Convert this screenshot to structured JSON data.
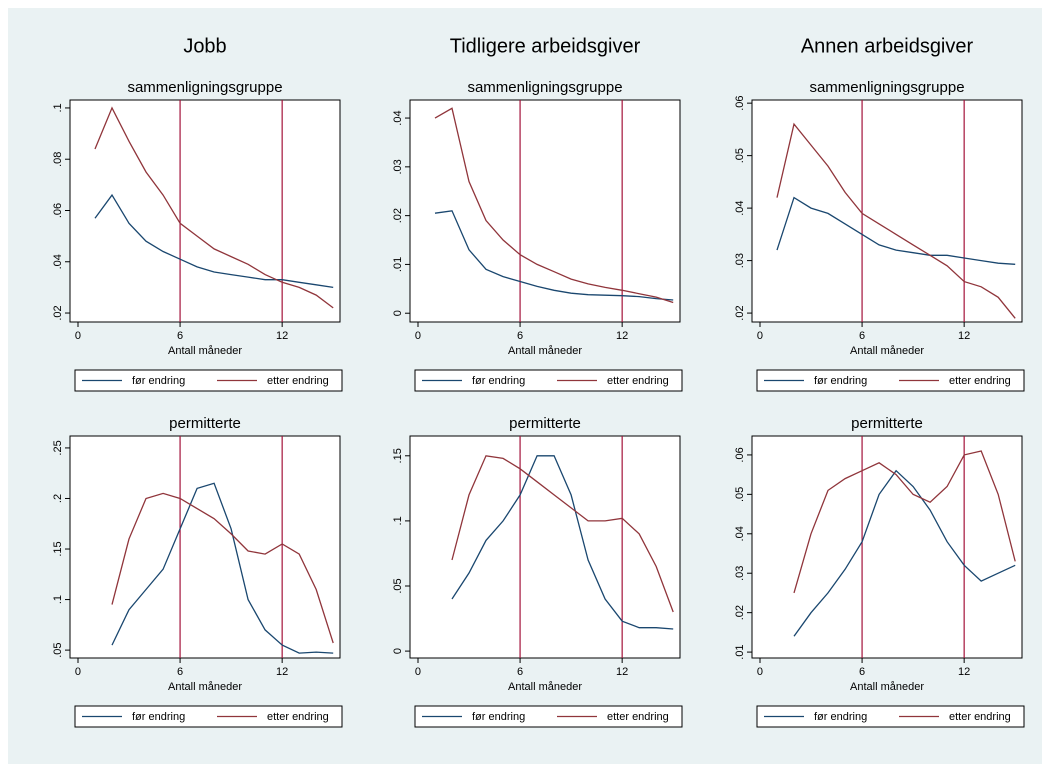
{
  "chart_data": [
    {
      "type": "line",
      "title": "Jobb",
      "subtitle": "sammenligningsgruppe",
      "x_label": "Antall måneder",
      "x": [
        1,
        2,
        3,
        4,
        5,
        6,
        7,
        8,
        9,
        10,
        11,
        12,
        13,
        14,
        15
      ],
      "series": [
        {
          "name": "før endring",
          "color": "#1a476f",
          "values": [
            0.057,
            0.066,
            0.055,
            0.048,
            0.044,
            0.041,
            0.038,
            0.036,
            0.035,
            0.034,
            0.033,
            0.033,
            0.032,
            0.031,
            0.03
          ]
        },
        {
          "name": "etter endring",
          "color": "#90353b",
          "values": [
            0.084,
            0.1,
            0.087,
            0.075,
            0.066,
            0.055,
            0.05,
            0.045,
            0.042,
            0.039,
            0.035,
            0.032,
            0.03,
            0.027,
            0.022
          ]
        }
      ],
      "xlim": [
        -0.47,
        15.4
      ],
      "xticks": [
        0,
        6,
        12
      ],
      "ylim": [
        0.0165,
        0.1031
      ],
      "yticks": [
        {
          "value": 0.02,
          "label": ".02"
        },
        {
          "value": 0.04,
          "label": ".04"
        },
        {
          "value": 0.06,
          "label": ".06"
        },
        {
          "value": 0.08,
          "label": ".08"
        },
        {
          "value": 0.1,
          "label": ".1"
        }
      ],
      "vlines": [
        6,
        12
      ],
      "vline_color": "#a3123a"
    },
    {
      "type": "line",
      "title": "Tidligere arbeidsgiver",
      "subtitle": "sammenligningsgruppe",
      "x_label": "Antall måneder",
      "x": [
        1,
        2,
        3,
        4,
        5,
        6,
        7,
        8,
        9,
        10,
        11,
        12,
        13,
        14,
        15
      ],
      "series": [
        {
          "name": "før endring",
          "color": "#1a476f",
          "values": [
            0.0205,
            0.021,
            0.013,
            0.009,
            0.0075,
            0.0065,
            0.0055,
            0.0047,
            0.0041,
            0.0038,
            0.0037,
            0.0036,
            0.0034,
            0.003,
            0.0027
          ]
        },
        {
          "name": "etter endring",
          "color": "#90353b",
          "values": [
            0.04,
            0.042,
            0.027,
            0.019,
            0.015,
            0.012,
            0.01,
            0.0085,
            0.007,
            0.006,
            0.0053,
            0.0047,
            0.004,
            0.0033,
            0.0022
          ]
        }
      ],
      "xlim": [
        -0.47,
        15.4
      ],
      "xticks": [
        0,
        6,
        12
      ],
      "ylim": [
        -0.0018,
        0.0437
      ],
      "yticks": [
        0,
        {
          "value": 0.01,
          "label": ".01"
        },
        {
          "value": 0.02,
          "label": ".02"
        },
        {
          "value": 0.03,
          "label": ".03"
        },
        {
          "value": 0.04,
          "label": ".04"
        }
      ],
      "vlines": [
        6,
        12
      ],
      "vline_color": "#a3123a"
    },
    {
      "type": "line",
      "title": "Annen arbeidsgiver",
      "subtitle": "sammenligningsgruppe",
      "x_label": "Antall måneder",
      "x": [
        1,
        2,
        3,
        4,
        5,
        6,
        7,
        8,
        9,
        10,
        11,
        12,
        13,
        14,
        15
      ],
      "series": [
        {
          "name": "før endring",
          "color": "#1a476f",
          "values": [
            0.032,
            0.042,
            0.04,
            0.039,
            0.037,
            0.035,
            0.033,
            0.032,
            0.0315,
            0.031,
            0.031,
            0.0305,
            0.03,
            0.0295,
            0.0293
          ]
        },
        {
          "name": "etter endring",
          "color": "#90353b",
          "values": [
            0.042,
            0.056,
            0.052,
            0.048,
            0.043,
            0.039,
            0.037,
            0.035,
            0.033,
            0.031,
            0.029,
            0.026,
            0.025,
            0.023,
            0.019
          ]
        }
      ],
      "xlim": [
        -0.47,
        15.4
      ],
      "xticks": [
        0,
        6,
        12
      ],
      "ylim": [
        0.0183,
        0.0606
      ],
      "yticks": [
        {
          "value": 0.02,
          "label": ".02"
        },
        {
          "value": 0.03,
          "label": ".03"
        },
        {
          "value": 0.04,
          "label": ".04"
        },
        {
          "value": 0.05,
          "label": ".05"
        },
        {
          "value": 0.06,
          "label": ".06"
        }
      ],
      "vlines": [
        6,
        12
      ],
      "vline_color": "#a3123a"
    },
    {
      "type": "line",
      "subtitle": "permitterte",
      "x_label": "Antall måneder",
      "x": [
        2,
        3,
        4,
        5,
        6,
        7,
        8,
        9,
        10,
        11,
        12,
        13,
        14,
        15
      ],
      "series": [
        {
          "name": "før endring",
          "color": "#1a476f",
          "values": [
            0.055,
            0.09,
            0.11,
            0.13,
            0.17,
            0.21,
            0.215,
            0.17,
            0.1,
            0.07,
            0.055,
            0.047,
            0.048,
            0.047
          ]
        },
        {
          "name": "etter endring",
          "color": "#90353b",
          "values": [
            0.095,
            0.16,
            0.2,
            0.205,
            0.2,
            0.19,
            0.18,
            0.165,
            0.148,
            0.145,
            0.155,
            0.145,
            0.11,
            0.057
          ]
        }
      ],
      "xlim": [
        -0.47,
        15.4
      ],
      "xticks": [
        0,
        6,
        12
      ],
      "ylim": [
        0.0422,
        0.2618
      ],
      "yticks": [
        {
          "value": 0.05,
          "label": ".05"
        },
        {
          "value": 0.1,
          "label": ".1"
        },
        {
          "value": 0.15,
          "label": ".15"
        },
        {
          "value": 0.2,
          "label": ".2"
        },
        {
          "value": 0.25,
          "label": ".25"
        }
      ],
      "vlines": [
        6,
        12
      ],
      "vline_color": "#a3123a"
    },
    {
      "type": "line",
      "subtitle": "permitterte",
      "x_label": "Antall måneder",
      "x": [
        2,
        3,
        4,
        5,
        6,
        7,
        8,
        9,
        10,
        11,
        12,
        13,
        14,
        15
      ],
      "series": [
        {
          "name": "før endring",
          "color": "#1a476f",
          "values": [
            0.04,
            0.06,
            0.085,
            0.1,
            0.12,
            0.15,
            0.15,
            0.12,
            0.07,
            0.04,
            0.023,
            0.018,
            0.018,
            0.017
          ]
        },
        {
          "name": "etter endring",
          "color": "#90353b",
          "values": [
            0.07,
            0.12,
            0.15,
            0.148,
            0.14,
            0.13,
            0.12,
            0.11,
            0.1,
            0.1,
            0.102,
            0.09,
            0.065,
            0.03
          ]
        }
      ],
      "xlim": [
        -0.47,
        15.4
      ],
      "xticks": [
        0,
        6,
        12
      ],
      "ylim": [
        -0.0053,
        0.1652
      ],
      "yticks": [
        0,
        {
          "value": 0.05,
          "label": ".05"
        },
        {
          "value": 0.1,
          "label": ".1"
        },
        {
          "value": 0.15,
          "label": ".15"
        }
      ],
      "vlines": [
        6,
        12
      ],
      "vline_color": "#a3123a"
    },
    {
      "type": "line",
      "subtitle": "permitterte",
      "x_label": "Antall måneder",
      "x": [
        2,
        3,
        4,
        5,
        6,
        7,
        8,
        9,
        10,
        11,
        12,
        13,
        14,
        15
      ],
      "series": [
        {
          "name": "før endring",
          "color": "#1a476f",
          "values": [
            0.014,
            0.02,
            0.025,
            0.031,
            0.038,
            0.05,
            0.056,
            0.052,
            0.046,
            0.038,
            0.032,
            0.028,
            0.03,
            0.032
          ]
        },
        {
          "name": "etter endring",
          "color": "#90353b",
          "values": [
            0.025,
            0.04,
            0.051,
            0.054,
            0.056,
            0.058,
            0.055,
            0.05,
            0.048,
            0.052,
            0.06,
            0.061,
            0.05,
            0.033
          ]
        }
      ],
      "xlim": [
        -0.47,
        15.4
      ],
      "xticks": [
        0,
        6,
        12
      ],
      "ylim": [
        0.0085,
        0.0648
      ],
      "yticks": [
        {
          "value": 0.01,
          "label": ".01"
        },
        {
          "value": 0.02,
          "label": ".02"
        },
        {
          "value": 0.03,
          "label": ".03"
        },
        {
          "value": 0.04,
          "label": ".04"
        },
        {
          "value": 0.05,
          "label": ".05"
        },
        {
          "value": 0.06,
          "label": ".06"
        }
      ],
      "vlines": [
        6,
        12
      ],
      "vline_color": "#a3123a"
    }
  ]
}
